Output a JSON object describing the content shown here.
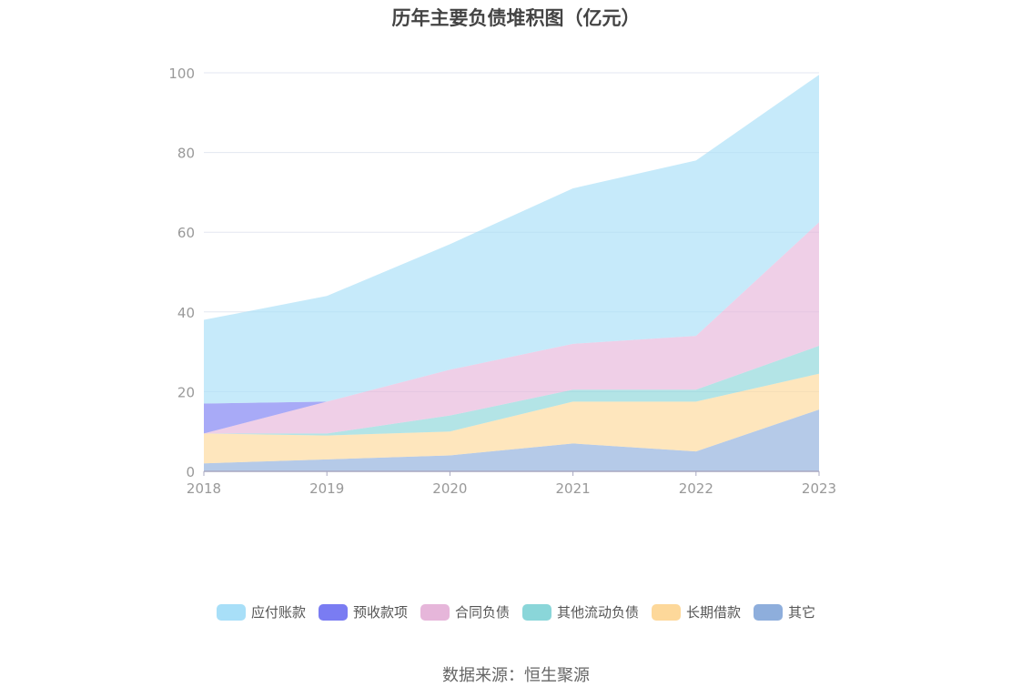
{
  "chart_data": {
    "type": "area",
    "title": "历年主要负债堆积图（亿元）",
    "categories": [
      "2018",
      "2019",
      "2020",
      "2021",
      "2022",
      "2023"
    ],
    "ylim": [
      0,
      100
    ],
    "yticks": [
      "0",
      "20",
      "40",
      "60",
      "80",
      "100"
    ],
    "stacked": true,
    "grid": true,
    "legend_position": "bottom",
    "series": [
      {
        "name": "其它",
        "color": "#8eaedc",
        "values": [
          2,
          3,
          4,
          7,
          5,
          15.5
        ]
      },
      {
        "name": "长期借款",
        "color": "#fdd89a",
        "values": [
          7.5,
          6,
          6,
          10.5,
          12.5,
          9
        ]
      },
      {
        "name": "其他流动负债",
        "color": "#8ad6d9",
        "values": [
          0,
          0.5,
          4,
          3,
          3,
          7
        ]
      },
      {
        "name": "合同负债",
        "color": "#e6b6da",
        "values": [
          0,
          8,
          11.5,
          11.5,
          13.5,
          31
        ]
      },
      {
        "name": "预收款项",
        "color": "#7a7cf2",
        "values": [
          7.5,
          0,
          0,
          0,
          0,
          0
        ]
      },
      {
        "name": "应付账款",
        "color": "#a8dff8",
        "values": [
          21,
          26.5,
          31.5,
          39,
          44,
          37
        ]
      }
    ],
    "legend_order": [
      "应付账款",
      "预收款项",
      "合同负债",
      "其他流动负债",
      "长期借款",
      "其它"
    ]
  },
  "source": "数据来源：恒生聚源"
}
